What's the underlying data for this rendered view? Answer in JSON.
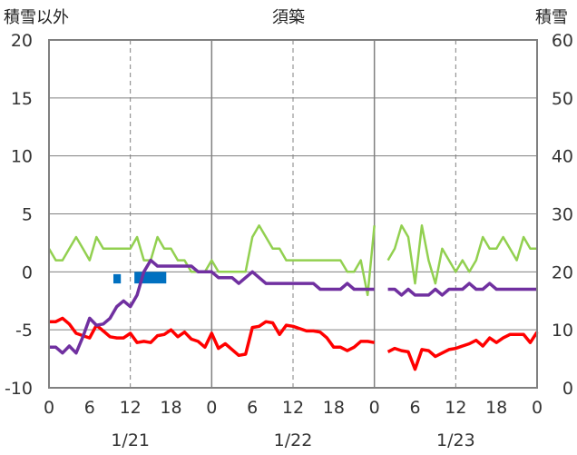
{
  "chart_data": {
    "type": "line",
    "title": "須築",
    "left_axis_label": "積雪以外",
    "right_axis_label": "積雪",
    "y_left": {
      "min": -10,
      "max": 20,
      "ticks": [
        "20",
        "15",
        "10",
        "5",
        "0",
        "-5",
        "-10"
      ]
    },
    "y_right": {
      "min": 0,
      "max": 60,
      "ticks": [
        "60",
        "50",
        "40",
        "30",
        "20",
        "10",
        "0"
      ]
    },
    "x_range_hours": [
      0,
      72
    ],
    "x_tick_labels": [
      "0",
      "6",
      "12",
      "18",
      "0",
      "6",
      "12",
      "18",
      "0",
      "6",
      "12",
      "18",
      "0"
    ],
    "date_labels": [
      "1/21",
      "1/22",
      "1/23"
    ],
    "colors": {
      "red": "#ff0000",
      "green": "#92d050",
      "purple": "#7030a0",
      "blue": "#0070c0",
      "grid_solid": "#808080",
      "grid_dash": "#808080"
    },
    "series": [
      {
        "key": "red",
        "axis": "left",
        "color": "#ff0000",
        "x": [
          0,
          1,
          2,
          3,
          4,
          5,
          6,
          7,
          8,
          9,
          10,
          11,
          12,
          13,
          14,
          15,
          16,
          17,
          18,
          19,
          20,
          21,
          22,
          23,
          24,
          25,
          26,
          27,
          28,
          29,
          30,
          31,
          32,
          33,
          34,
          35,
          36,
          37,
          38,
          39,
          40,
          41,
          42,
          43,
          44,
          45,
          46,
          47,
          48,
          null,
          50,
          51,
          52,
          53,
          54,
          55,
          56,
          57,
          58,
          59,
          60,
          61,
          62,
          63,
          64,
          65,
          66,
          67,
          68,
          69,
          70,
          71,
          72
        ],
        "y": [
          -4.3,
          -4.3,
          -4,
          -4.5,
          -5.3,
          -5.5,
          -5.7,
          -4.6,
          -5.1,
          -5.6,
          -5.7,
          -5.7,
          -5.3,
          -6.1,
          -6,
          -6.1,
          -5.5,
          -5.4,
          -5,
          -5.6,
          -5.2,
          -5.8,
          -6,
          -6.5,
          -5.3,
          -6.6,
          -6.2,
          -6.7,
          -7.2,
          -7.1,
          -4.8,
          -4.7,
          -4.3,
          -4.4,
          -5.4,
          -4.6,
          -4.7,
          -4.9,
          -5.1,
          -5.1,
          -5.2,
          -5.7,
          -6.5,
          -6.5,
          -6.8,
          -6.5,
          -6,
          -6,
          -6.1,
          null,
          -6.9,
          -6.6,
          -6.8,
          -6.9,
          -8.4,
          -6.7,
          -6.8,
          -7.3,
          -7,
          -6.7,
          -6.6,
          -6.4,
          -6.2,
          -5.9,
          -6.4,
          -5.7,
          -6.1,
          -5.7,
          -5.4,
          -5.4,
          -5.4,
          -6.1,
          -5.2
        ]
      },
      {
        "key": "green",
        "axis": "left",
        "color": "#92d050",
        "x": [
          0,
          1,
          2,
          3,
          4,
          5,
          6,
          7,
          8,
          9,
          10,
          11,
          12,
          13,
          14,
          15,
          16,
          17,
          18,
          19,
          20,
          21,
          22,
          23,
          24,
          25,
          26,
          27,
          28,
          29,
          30,
          31,
          32,
          33,
          34,
          35,
          36,
          37,
          38,
          39,
          40,
          41,
          42,
          43,
          44,
          45,
          46,
          47,
          48,
          null,
          50,
          51,
          52,
          53,
          54,
          55,
          56,
          57,
          58,
          59,
          60,
          61,
          62,
          63,
          64,
          65,
          66,
          67,
          68,
          69,
          70,
          71,
          72
        ],
        "y": [
          2,
          1,
          1,
          2,
          3,
          2,
          1,
          3,
          2,
          2,
          2,
          2,
          2,
          3,
          1,
          1,
          3,
          2,
          2,
          1,
          1,
          0,
          0,
          0,
          1,
          0,
          0,
          0,
          0,
          0,
          3,
          4,
          3,
          2,
          2,
          1,
          1,
          1,
          1,
          1,
          1,
          1,
          1,
          1,
          0,
          0,
          1,
          -2,
          4,
          null,
          1,
          2,
          4,
          3,
          -1,
          4,
          1,
          -1,
          2,
          1,
          0,
          1,
          0,
          1,
          3,
          2,
          2,
          3,
          2,
          1,
          3,
          2,
          2
        ]
      },
      {
        "key": "purple",
        "axis": "left",
        "color": "#7030a0",
        "x": [
          0,
          1,
          2,
          3,
          4,
          5,
          6,
          7,
          8,
          9,
          10,
          11,
          12,
          13,
          14,
          15,
          16,
          17,
          18,
          19,
          20,
          21,
          22,
          23,
          24,
          25,
          26,
          27,
          28,
          29,
          30,
          31,
          32,
          33,
          34,
          35,
          36,
          37,
          38,
          39,
          40,
          41,
          42,
          43,
          44,
          45,
          46,
          47,
          48,
          null,
          50,
          51,
          52,
          53,
          54,
          55,
          56,
          57,
          58,
          59,
          60,
          61,
          62,
          63,
          64,
          65,
          66,
          67,
          68,
          69,
          70,
          71,
          72
        ],
        "y": [
          -6.5,
          -6.5,
          -7,
          -6.4,
          -7,
          -5.6,
          -4,
          -4.6,
          -4.5,
          -4,
          -3,
          -2.5,
          -3,
          -2,
          0,
          1,
          0.5,
          0.5,
          0.5,
          0.5,
          0.5,
          0.5,
          0,
          0,
          0,
          -0.5,
          -0.5,
          -0.5,
          -1,
          -0.5,
          0,
          -0.5,
          -1,
          -1,
          -1,
          -1,
          -1,
          -1,
          -1,
          -1,
          -1.5,
          -1.5,
          -1.5,
          -1.5,
          -1,
          -1.5,
          -1.5,
          -1.5,
          -1.5,
          null,
          -1.5,
          -1.5,
          -2,
          -1.5,
          -2,
          -2,
          -2,
          -1.5,
          -2,
          -1.5,
          -1.5,
          -1.5,
          -1,
          -1.5,
          -1.5,
          -1,
          -1.5,
          -1.5,
          -1.5,
          -1.5,
          -1.5,
          -1.5,
          -1.5
        ]
      }
    ],
    "blue_bars": {
      "axis": "left",
      "color": "#0070c0",
      "bars": [
        {
          "x_start": 9.5,
          "x_end": 10.6,
          "y_top": -0.2,
          "y_bottom": -1
        },
        {
          "x_start": 12.6,
          "x_end": 17.3,
          "y_top": 0,
          "y_bottom": -1
        }
      ]
    }
  }
}
